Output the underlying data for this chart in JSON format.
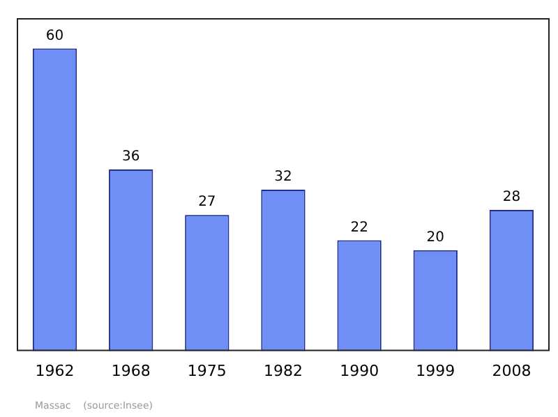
{
  "chart_data": {
    "type": "bar",
    "categories": [
      "1962",
      "1968",
      "1975",
      "1982",
      "1990",
      "1999",
      "2008"
    ],
    "values": [
      60,
      36,
      27,
      32,
      22,
      20,
      28
    ],
    "color": "#6f8ff7",
    "ylim": [
      0,
      66
    ],
    "data_labels": true,
    "grid": false,
    "legend": false,
    "annotations": [
      "Massac    (source:Insee)"
    ]
  }
}
